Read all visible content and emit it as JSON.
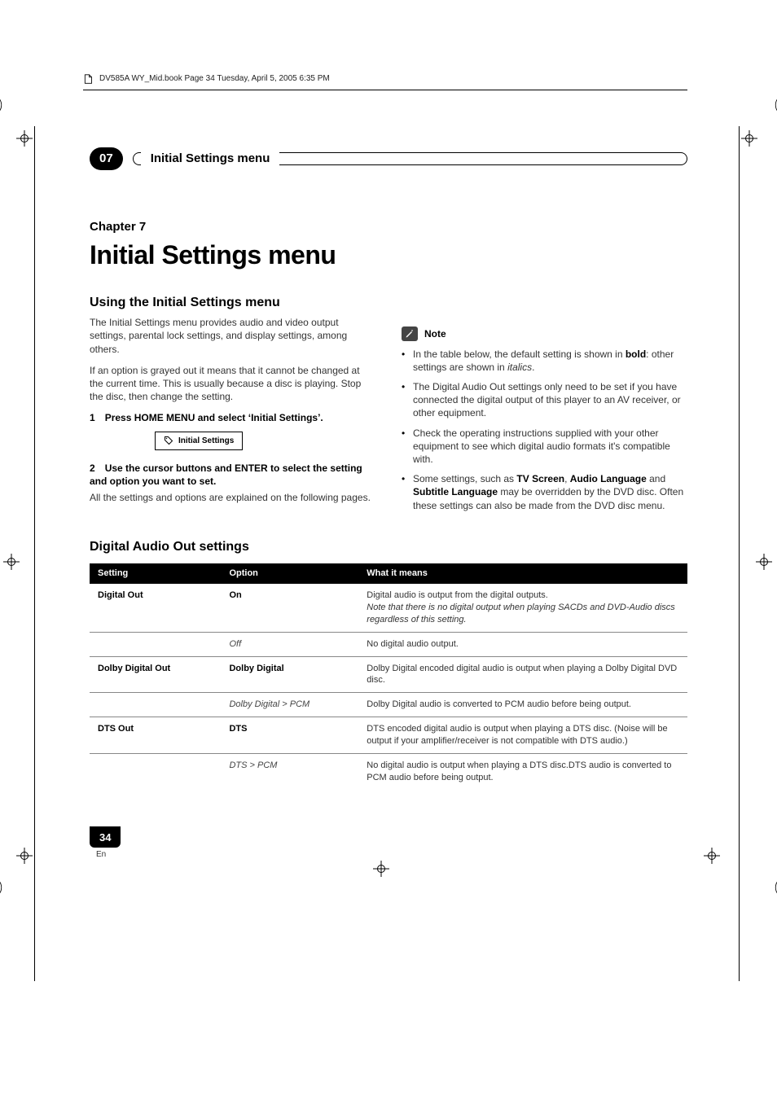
{
  "book_line": "DV585A WY_Mid.book  Page 34  Tuesday, April 5, 2005  6:35 PM",
  "chapter_bar": {
    "number": "07",
    "title": "Initial Settings menu"
  },
  "heading": {
    "chapter_label": "Chapter 7",
    "main_title": "Initial Settings menu"
  },
  "left_col": {
    "section_title": "Using the Initial Settings menu",
    "p1": "The Initial Settings menu provides audio and video output settings, parental lock settings, and display settings, among others.",
    "p2": "If an option is grayed out it means that it cannot be changed at the current time. This is usually because a disc is playing. Stop the disc, then change the setting.",
    "step1_num": "1",
    "step1_text": "Press HOME MENU and select ‘Initial Settings’.",
    "btn_label": "Initial Settings",
    "step2_num": "2",
    "step2_text": "Use the cursor buttons and ENTER to select the setting and option you want to set.",
    "p3": "All the settings and options are explained on the following pages."
  },
  "right_col": {
    "note_label": "Note",
    "bullets": [
      {
        "pre": "In the table below, the default setting is shown in ",
        "bold": "bold",
        "mid": ": other settings are shown in ",
        "italic": "italics",
        "post": "."
      },
      {
        "text": "The Digital Audio Out settings only need to be set if you have connected the digital output of this player to an AV receiver, or other equipment."
      },
      {
        "text": "Check the operating instructions supplied with your other equipment to see which digital audio formats it's compatible with."
      },
      {
        "pre": "Some settings, such as ",
        "b1": "TV Screen",
        "mid1": ", ",
        "b2": "Audio Language",
        "mid2": " and ",
        "b3": "Subtitle Language",
        "post": " may be overridden by the DVD disc. Often these settings can also be made from the DVD disc menu."
      }
    ]
  },
  "table": {
    "title": "Digital Audio Out settings",
    "head": {
      "setting": "Setting",
      "option": "Option",
      "meaning": "What it means"
    },
    "rows": [
      {
        "setting": "Digital Out",
        "option": "On",
        "option_style": "bold",
        "meaning_main": "Digital audio is output from the digital outputs.",
        "meaning_note": "Note that there is no digital output when playing SACDs and DVD-Audio discs regardless of this setting.",
        "divider": false
      },
      {
        "setting": "",
        "option": "Off",
        "option_style": "italic",
        "meaning_main": "No digital audio output.",
        "meaning_note": "",
        "divider": true
      },
      {
        "setting": "Dolby Digital Out",
        "option": "Dolby Digital",
        "option_style": "bold",
        "meaning_main": "Dolby Digital encoded digital audio is output when playing a Dolby Digital DVD disc.",
        "meaning_note": "",
        "divider": true
      },
      {
        "setting": "",
        "option": "Dolby Digital > PCM",
        "option_style": "italic",
        "meaning_main": "Dolby Digital audio is converted to PCM audio before being output.",
        "meaning_note": "",
        "divider": true
      },
      {
        "setting": "DTS Out",
        "option": "DTS",
        "option_style": "bold",
        "meaning_main": "DTS encoded digital audio is output when playing a DTS disc. (Noise will be output if your amplifier/receiver is not compatible with DTS audio.)",
        "meaning_note": "",
        "divider": true
      },
      {
        "setting": "",
        "option": "DTS > PCM",
        "option_style": "italic",
        "meaning_main": "No digital audio is output when playing a DTS disc.DTS audio is converted to PCM audio before being output.",
        "meaning_note": "",
        "divider": true
      }
    ]
  },
  "footer": {
    "page_no": "34",
    "lang": "En"
  },
  "colors": {
    "black": "#000000",
    "grey_text": "#333333",
    "rule": "#888888"
  }
}
